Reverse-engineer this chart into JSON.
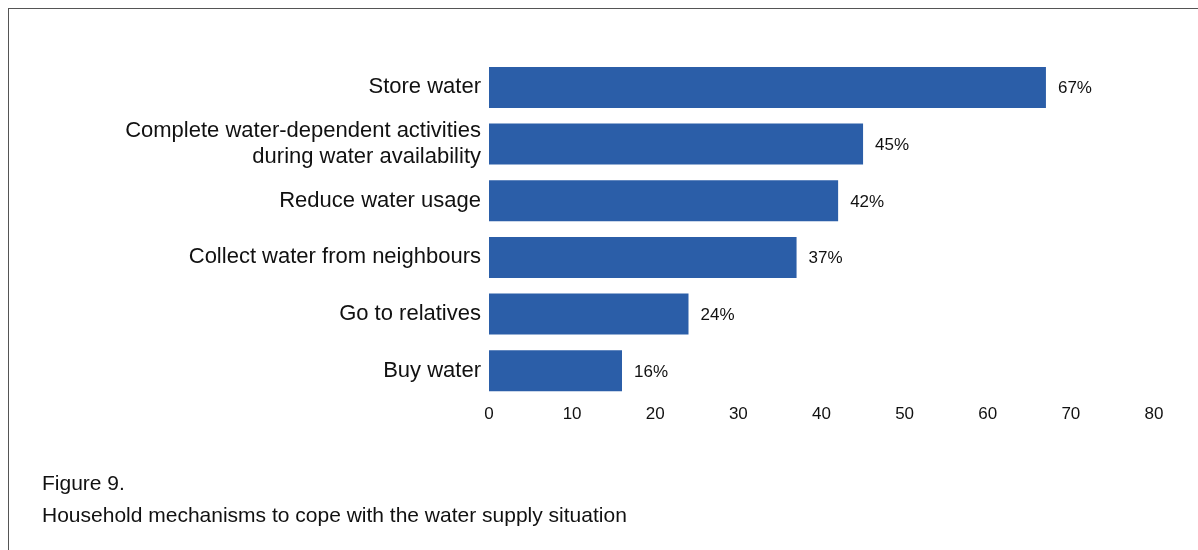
{
  "chart_data": {
    "type": "bar",
    "orientation": "horizontal",
    "title": "Figure 9.",
    "subtitle": "Household mechanisms to cope with the water supply situation",
    "categories": [
      "Store water",
      "Complete water-dependent activities during water availability",
      "Reduce water usage",
      "Collect water from neighbours",
      "Go to relatives",
      "Buy water"
    ],
    "values": [
      67,
      45,
      42,
      37,
      24,
      16
    ],
    "value_labels": [
      "67%",
      "45%",
      "42%",
      "37%",
      "24%",
      "16%"
    ],
    "color": "#2b5ea8",
    "xlim": [
      0,
      80
    ],
    "xticks": [
      0,
      10,
      20,
      30,
      40,
      50,
      60,
      70,
      80
    ],
    "grid": false
  }
}
